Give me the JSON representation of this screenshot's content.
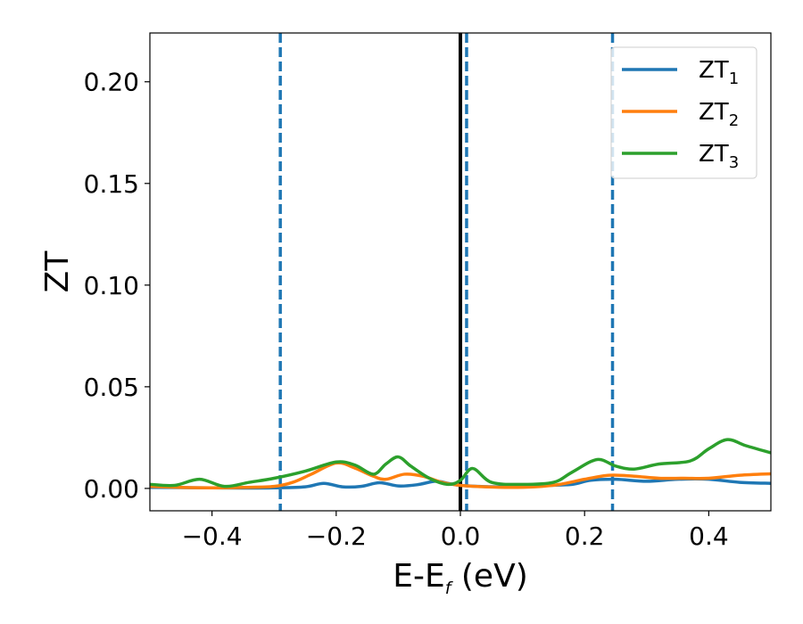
{
  "chart_data": {
    "type": "line",
    "xlabel": {
      "main": "E-E",
      "sub": "f",
      "suffix": " (eV)"
    },
    "ylabel": "ZT",
    "xlim": [
      -0.5,
      0.5
    ],
    "ylim": [
      -0.011,
      0.224
    ],
    "x_ticks": [
      -0.4,
      -0.2,
      0.0,
      0.2,
      0.4
    ],
    "x_tick_labels": [
      "−0.4",
      "−0.2",
      "0.0",
      "0.2",
      "0.4"
    ],
    "y_ticks": [
      0.0,
      0.05,
      0.1,
      0.15,
      0.2
    ],
    "y_tick_labels": [
      "0.00",
      "0.05",
      "0.10",
      "0.15",
      "0.20"
    ],
    "grid": false,
    "legend_position": "top-right",
    "series": [
      {
        "name": "ZT",
        "name_sub": "1",
        "color": "#1f77b4",
        "x": [
          -0.5,
          -0.45,
          -0.4,
          -0.35,
          -0.3,
          -0.25,
          -0.22,
          -0.19,
          -0.16,
          -0.13,
          -0.1,
          -0.07,
          -0.04,
          -0.02,
          0.0,
          0.03,
          0.06,
          0.1,
          0.14,
          0.18,
          0.21,
          0.25,
          0.3,
          0.35,
          0.4,
          0.45,
          0.5
        ],
        "y": [
          0.0005,
          0.0004,
          0.0003,
          0.0002,
          0.0003,
          0.0008,
          0.0025,
          0.0008,
          0.001,
          0.0028,
          0.0012,
          0.0018,
          0.0035,
          0.0025,
          0.0015,
          0.001,
          0.0008,
          0.001,
          0.0015,
          0.002,
          0.004,
          0.0045,
          0.0035,
          0.0045,
          0.0045,
          0.003,
          0.0025
        ]
      },
      {
        "name": "ZT",
        "name_sub": "2",
        "color": "#ff7f0e",
        "x": [
          -0.5,
          -0.45,
          -0.4,
          -0.35,
          -0.3,
          -0.27,
          -0.24,
          -0.2,
          -0.17,
          -0.14,
          -0.12,
          -0.09,
          -0.06,
          -0.03,
          0.0,
          0.04,
          0.08,
          0.12,
          0.16,
          0.2,
          0.24,
          0.28,
          0.32,
          0.36,
          0.4,
          0.45,
          0.5
        ],
        "y": [
          0.001,
          0.0005,
          0.0003,
          0.0005,
          0.001,
          0.003,
          0.007,
          0.0125,
          0.01,
          0.006,
          0.0045,
          0.007,
          0.006,
          0.003,
          0.0015,
          0.0008,
          0.0005,
          0.0008,
          0.002,
          0.0045,
          0.0065,
          0.006,
          0.005,
          0.005,
          0.005,
          0.0065,
          0.0072
        ]
      },
      {
        "name": "ZT",
        "name_sub": "3",
        "color": "#2ca02c",
        "x": [
          -0.5,
          -0.46,
          -0.42,
          -0.38,
          -0.34,
          -0.3,
          -0.25,
          -0.2,
          -0.17,
          -0.14,
          -0.12,
          -0.1,
          -0.08,
          -0.05,
          -0.02,
          0.0,
          0.02,
          0.05,
          0.1,
          0.15,
          0.18,
          0.22,
          0.25,
          0.28,
          0.32,
          0.37,
          0.4,
          0.43,
          0.46,
          0.5
        ],
        "y": [
          0.002,
          0.0015,
          0.0045,
          0.001,
          0.003,
          0.005,
          0.0085,
          0.013,
          0.0115,
          0.007,
          0.012,
          0.0155,
          0.011,
          0.005,
          0.002,
          0.004,
          0.0098,
          0.003,
          0.002,
          0.003,
          0.008,
          0.0142,
          0.011,
          0.0095,
          0.012,
          0.0135,
          0.0195,
          0.024,
          0.021,
          0.0175
        ]
      }
    ],
    "vlines": [
      {
        "x": -0.29,
        "style": "dashed",
        "color": "#1f77b4"
      },
      {
        "x": 0.0,
        "style": "solid",
        "color": "#000000"
      },
      {
        "x": 0.01,
        "style": "dashed",
        "color": "#1f77b4"
      },
      {
        "x": 0.245,
        "style": "dashed",
        "color": "#1f77b4"
      }
    ]
  }
}
